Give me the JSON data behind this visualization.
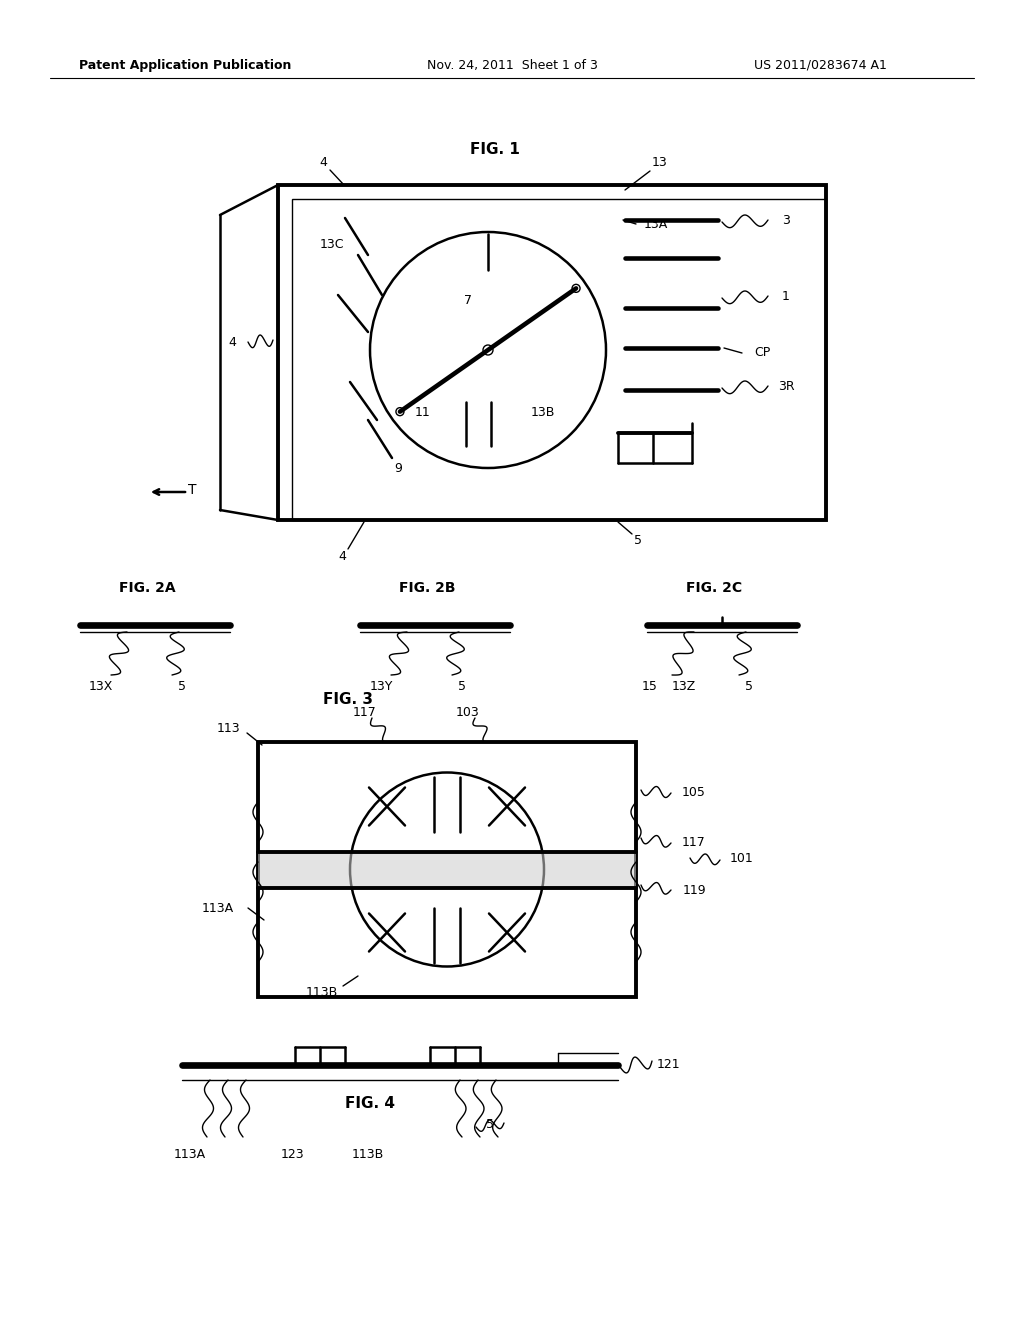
{
  "background_color": "#ffffff",
  "header_left": "Patent Application Publication",
  "header_center": "Nov. 24, 2011  Sheet 1 of 3",
  "header_right": "US 2011/0283674 A1",
  "fig1_title": "FIG. 1",
  "fig2a_title": "FIG. 2A",
  "fig2b_title": "FIG. 2B",
  "fig2c_title": "FIG. 2C",
  "fig3_title": "FIG. 3",
  "fig4_title": "FIG. 4",
  "line_color": "#000000"
}
